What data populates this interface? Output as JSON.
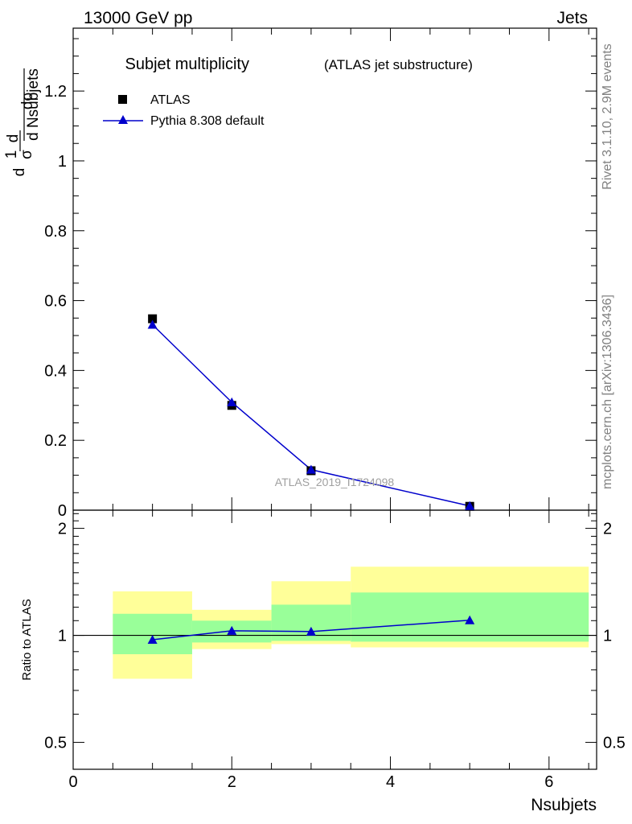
{
  "header": {
    "left": "13000 GeV pp",
    "right": "Jets"
  },
  "side_text": {
    "top": "Rivet 3.1.10,  2.9M events",
    "bottom": "mcplots.cern.ch [arXiv:1306.3436]"
  },
  "watermark": "ATLAS_2019_I1724098",
  "chart_data": {
    "type": "scatter",
    "title": "Subjet multiplicity",
    "subtitle": "(ATLAS jet substructure)",
    "main": {
      "ylabel_den": "d Nsubjets",
      "ylim": [
        0,
        1.38
      ],
      "yticks": [
        {
          "v": 0,
          "label": "0"
        },
        {
          "v": 0.2,
          "label": "0.2"
        },
        {
          "v": 0.4,
          "label": "0.4"
        },
        {
          "v": 0.6,
          "label": "0.6"
        },
        {
          "v": 0.8,
          "label": "0.8"
        },
        {
          "v": 1.0,
          "label": "1"
        },
        {
          "v": 1.2,
          "label": "1.2"
        }
      ],
      "series": [
        {
          "name": "ATLAS",
          "marker": "square",
          "color": "#000000",
          "x": [
            1,
            2,
            3,
            5
          ],
          "y": [
            0.548,
            0.3,
            0.113,
            0.011
          ]
        },
        {
          "name": "Pythia 8.308 default",
          "marker": "triangle",
          "color": "#0000cc",
          "x": [
            1,
            2,
            3,
            5
          ],
          "y": [
            0.531,
            0.309,
            0.116,
            0.012
          ]
        }
      ]
    },
    "ratio": {
      "ylabel": "Ratio to ATLAS",
      "ylim": [
        0.42,
        2.25
      ],
      "log": true,
      "yticks": [
        {
          "v": 0.5,
          "label": "0.5"
        },
        {
          "v": 1,
          "label": "1"
        },
        {
          "v": 2,
          "label": "2"
        }
      ],
      "bands": [
        {
          "x0": 0.5,
          "x1": 1.5,
          "y_lo": 0.755,
          "y_hi": 1.33,
          "y_lo_inner": 0.885,
          "y_hi_inner": 1.15
        },
        {
          "x0": 1.5,
          "x1": 2.5,
          "y_lo": 0.915,
          "y_hi": 1.18,
          "y_lo_inner": 0.955,
          "y_hi_inner": 1.1
        },
        {
          "x0": 2.5,
          "x1": 3.5,
          "y_lo": 0.945,
          "y_hi": 1.42,
          "y_lo_inner": 0.965,
          "y_hi_inner": 1.22
        },
        {
          "x0": 3.5,
          "x1": 6.5,
          "y_lo": 0.925,
          "y_hi": 1.56,
          "y_lo_inner": 0.96,
          "y_hi_inner": 1.32
        }
      ],
      "series": [
        {
          "name": "Pythia 8.308 default",
          "color": "#0000cc",
          "x": [
            1,
            2,
            3,
            5
          ],
          "y": [
            0.972,
            1.03,
            1.025,
            1.103
          ]
        }
      ]
    },
    "xlabel": "Nsubjets",
    "xlim": [
      0,
      6.6
    ],
    "xticks": [
      {
        "v": 0,
        "label": "0"
      },
      {
        "v": 2,
        "label": "2"
      },
      {
        "v": 4,
        "label": "4"
      },
      {
        "v": 6,
        "label": "6"
      }
    ],
    "colors": {
      "band_outer": "#ffff99",
      "band_inner": "#99ff99",
      "mc": "#0000cc",
      "data": "#000000"
    }
  }
}
